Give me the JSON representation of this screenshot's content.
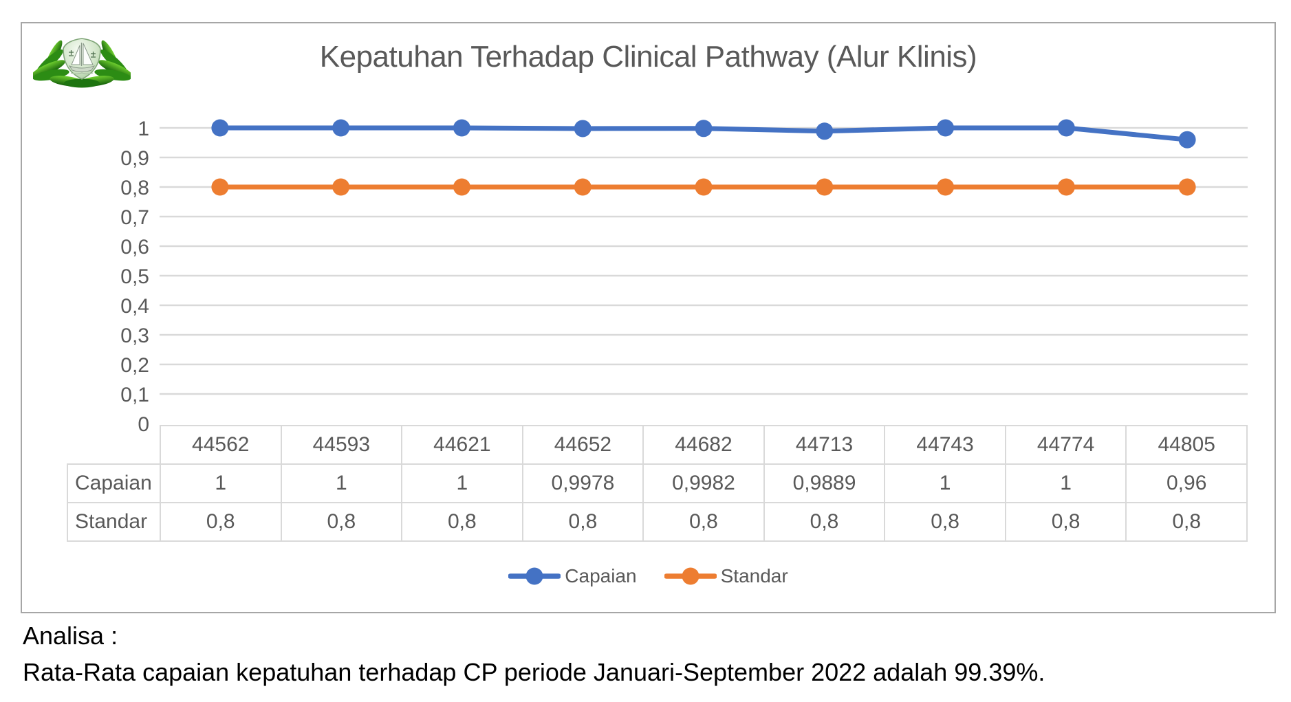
{
  "chart_data": {
    "type": "line",
    "title": "Kepatuhan Terhadap Clinical Pathway (Alur Klinis)",
    "categories": [
      "44562",
      "44593",
      "44621",
      "44652",
      "44682",
      "44713",
      "44743",
      "44774",
      "44805"
    ],
    "series": [
      {
        "name": "Capaian",
        "color": "#4472C4",
        "values": [
          1,
          1,
          1,
          0.9978,
          0.9982,
          0.9889,
          1,
          1,
          0.96
        ],
        "display_values": [
          "1",
          "1",
          "1",
          "0,9978",
          "0,9982",
          "0,9889",
          "1",
          "1",
          "0,96"
        ]
      },
      {
        "name": "Standar",
        "color": "#ED7D31",
        "values": [
          0.8,
          0.8,
          0.8,
          0.8,
          0.8,
          0.8,
          0.8,
          0.8,
          0.8
        ],
        "display_values": [
          "0,8",
          "0,8",
          "0,8",
          "0,8",
          "0,8",
          "0,8",
          "0,8",
          "0,8",
          "0,8"
        ]
      }
    ],
    "ylim": [
      0,
      1
    ],
    "yticks": [
      {
        "value": 0,
        "label": "0"
      },
      {
        "value": 0.1,
        "label": "0,1"
      },
      {
        "value": 0.2,
        "label": "0,2"
      },
      {
        "value": 0.3,
        "label": "0,3"
      },
      {
        "value": 0.4,
        "label": "0,4"
      },
      {
        "value": 0.5,
        "label": "0,5"
      },
      {
        "value": 0.6,
        "label": "0,6"
      },
      {
        "value": 0.7,
        "label": "0,7"
      },
      {
        "value": 0.8,
        "label": "0,8"
      },
      {
        "value": 0.9,
        "label": "0,9"
      },
      {
        "value": 1,
        "label": "1"
      }
    ],
    "grid": true,
    "grid_color": "#d9d9d9",
    "axis_text_color": "#595959",
    "legend_position": "bottom",
    "has_data_table": true
  },
  "analysis": {
    "heading": "Analisa :",
    "text": "Rata-Rata capaian kepatuhan terhadap CP periode Januari-September 2022 adalah 99.39%."
  }
}
